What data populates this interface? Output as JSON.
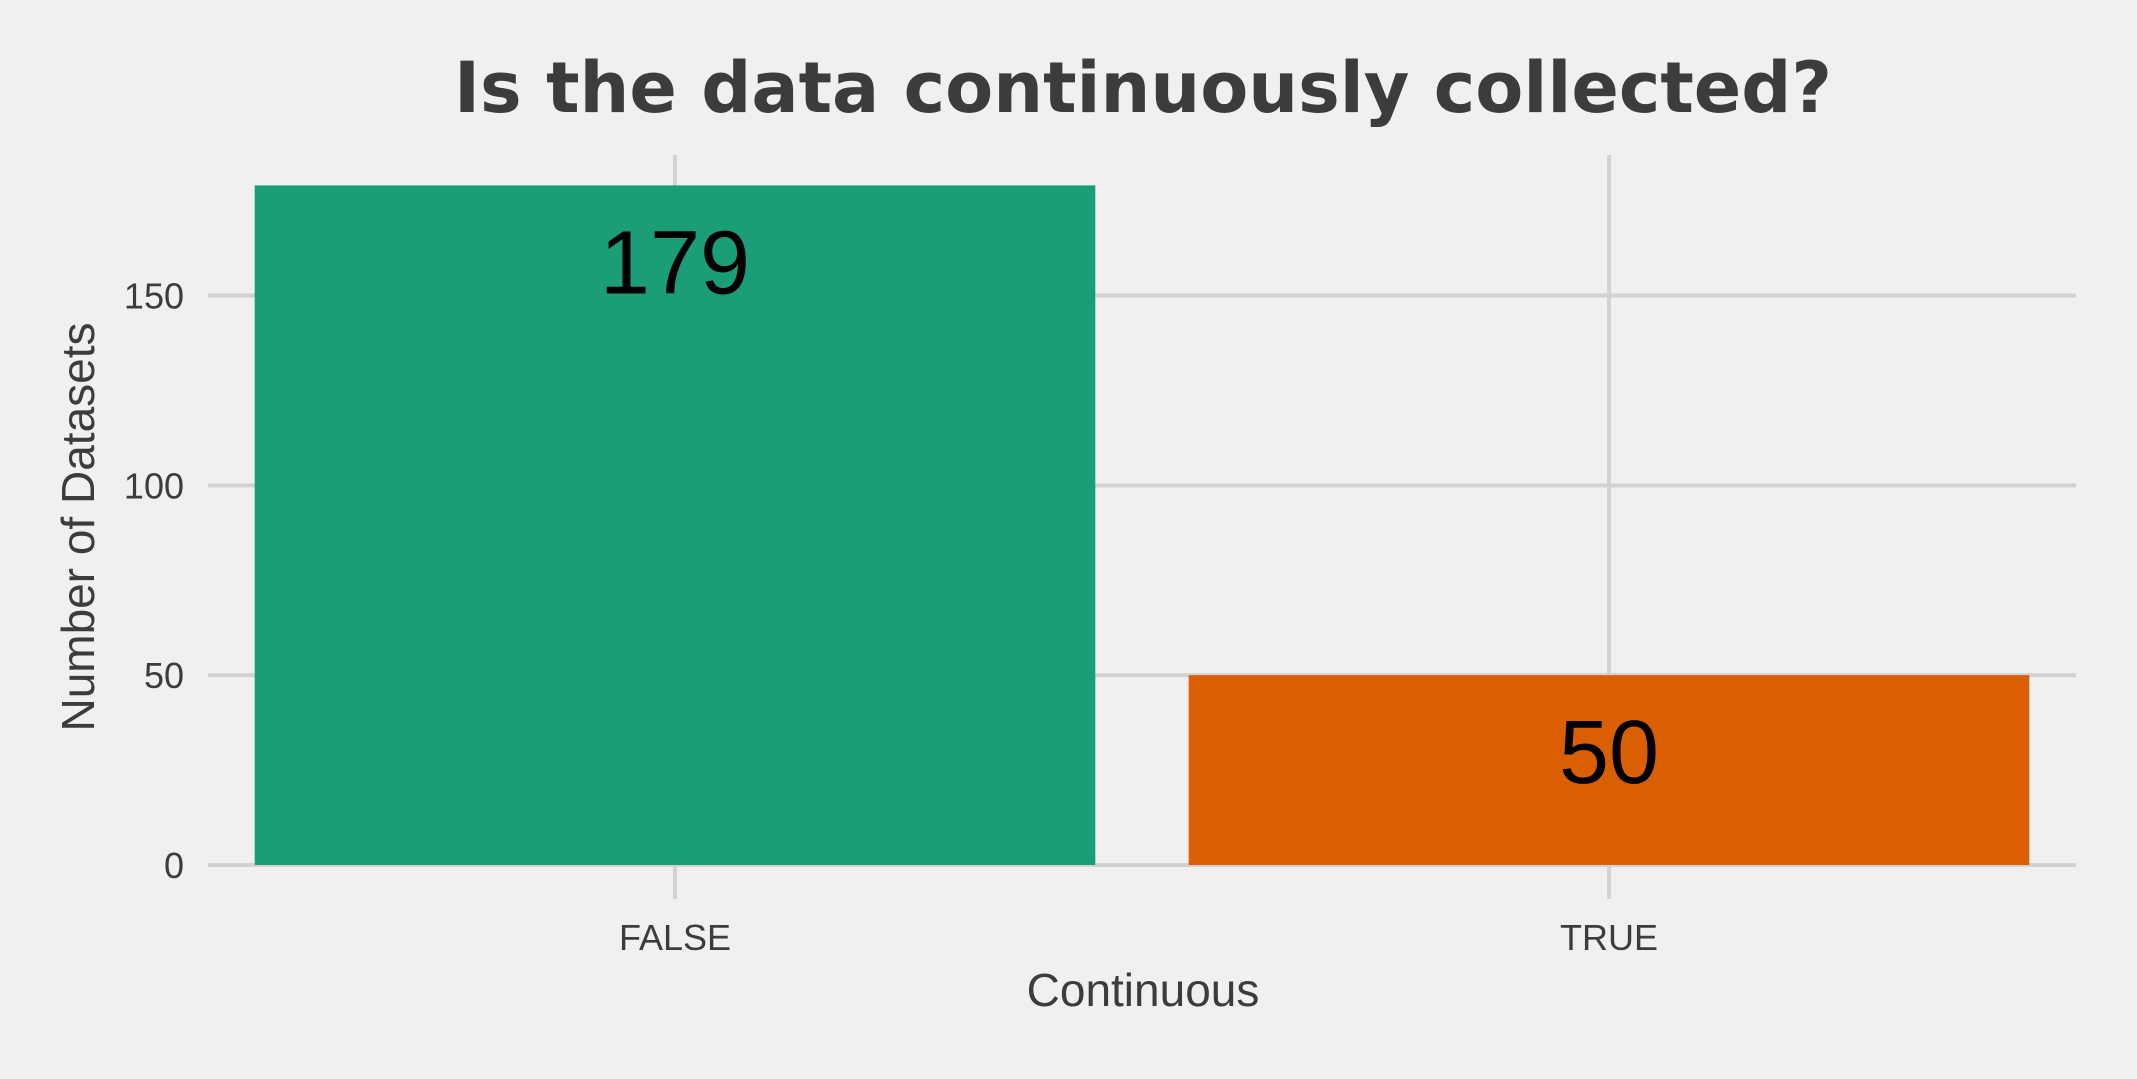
{
  "chart_data": {
    "type": "bar",
    "title": "Is the data continuously collected?",
    "xlabel": "Continuous",
    "ylabel": "Number of Datasets",
    "categories": [
      "FALSE",
      "TRUE"
    ],
    "values": [
      179,
      50
    ],
    "data_labels": [
      "179",
      "50"
    ],
    "colors": [
      "#1b9e77",
      "#d95f02"
    ],
    "ylim": [
      0,
      187
    ],
    "yticks": [
      0,
      50,
      100,
      150
    ],
    "ytick_labels": [
      "0",
      "50",
      "100",
      "150"
    ],
    "grid": true,
    "legend": "none",
    "background": "#f0f0f0",
    "gridline_color": "#d2d2d2"
  }
}
